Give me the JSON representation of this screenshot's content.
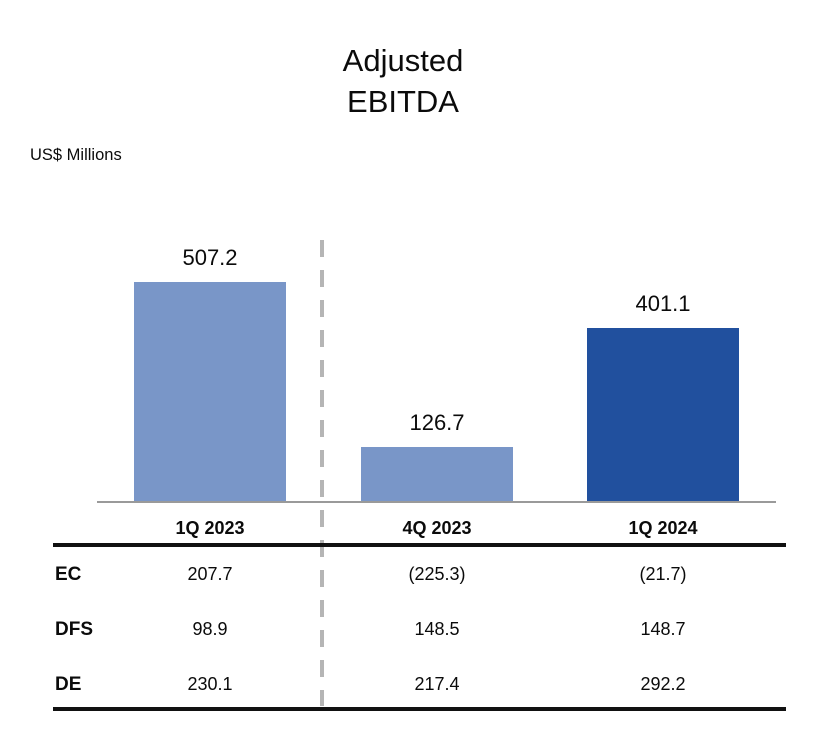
{
  "title": {
    "line1": "Adjusted",
    "line2": "EBITDA"
  },
  "units_label": "US$ Millions",
  "colors": {
    "bar_light_blue": "#7996C8",
    "bar_dark_blue": "#21509E",
    "divider_gray": "#B5B5B5",
    "axis_gray": "#9A9A9A",
    "rule_black": "#111111",
    "text_black": "#0B0B0B"
  },
  "chart_data": {
    "type": "bar",
    "title": "Adjusted EBITDA",
    "ylabel": "US$ Millions",
    "categories": [
      "1Q 2023",
      "4Q 2023",
      "1Q 2024"
    ],
    "values": [
      507.2,
      126.7,
      401.1
    ],
    "bar_colors": [
      "#7996C8",
      "#7996C8",
      "#21509E"
    ],
    "ylim": [
      0,
      550
    ],
    "grid": false,
    "legend": false,
    "divider_after_category_index": 0,
    "breakdown_table": {
      "column_headers": [
        "1Q 2023",
        "4Q 2023",
        "1Q 2024"
      ],
      "rows": [
        {
          "label": "EC",
          "values": [
            "207.7",
            "(225.3)",
            "(21.7)"
          ]
        },
        {
          "label": "DFS",
          "values": [
            "98.9",
            "148.5",
            "148.7"
          ]
        },
        {
          "label": "DE",
          "values": [
            "230.1",
            "217.4",
            "292.2"
          ]
        }
      ]
    }
  }
}
